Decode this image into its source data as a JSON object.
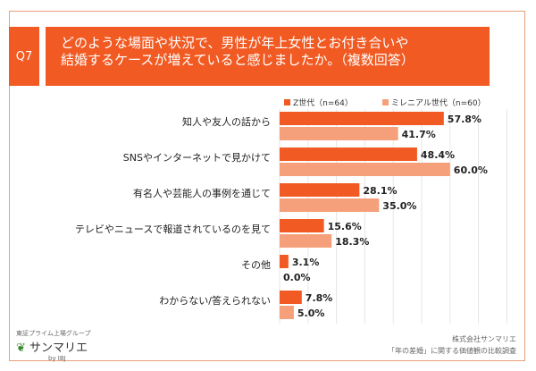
{
  "header": {
    "q_label": "Q7",
    "title": "どのような場面や状況で、男性が年上女性とお付き合いや\n結婚するケースが増えていると感じましたか。（複数回答）"
  },
  "chart_data": {
    "type": "bar",
    "orientation": "horizontal",
    "categories": [
      "知人や友人の話から",
      "SNSやインターネットで見かけて",
      "有名人や芸能人の事例を通じて",
      "テレビやニュースで報道されているのを見て",
      "その他",
      "わからない/答えられない"
    ],
    "series": [
      {
        "name": "Z世代（n=64）",
        "color": "#f15a22",
        "values": [
          57.8,
          48.4,
          28.1,
          15.6,
          3.1,
          7.8
        ],
        "labels": [
          "57.8%",
          "48.4%",
          "28.1%",
          "15.6%",
          "3.1%",
          "7.8%"
        ]
      },
      {
        "name": "ミレニアル世代（n=60）",
        "color": "#f5a07a",
        "values": [
          41.7,
          60.0,
          35.0,
          18.3,
          0.0,
          5.0
        ],
        "labels": [
          "41.7%",
          "60.0%",
          "35.0%",
          "18.3%",
          "0.0%",
          "5.0%"
        ]
      }
    ],
    "xlim": [
      0,
      80
    ],
    "grid": true,
    "legend": "top-right"
  },
  "footer": {
    "company": "株式会社サンマリエ",
    "survey": "「年の差婚」に関する価値観の比較調査",
    "logo_text": "サンマリエ",
    "logo_tag": "東証プライム上場グループ",
    "logo_by": "by IBJ"
  }
}
